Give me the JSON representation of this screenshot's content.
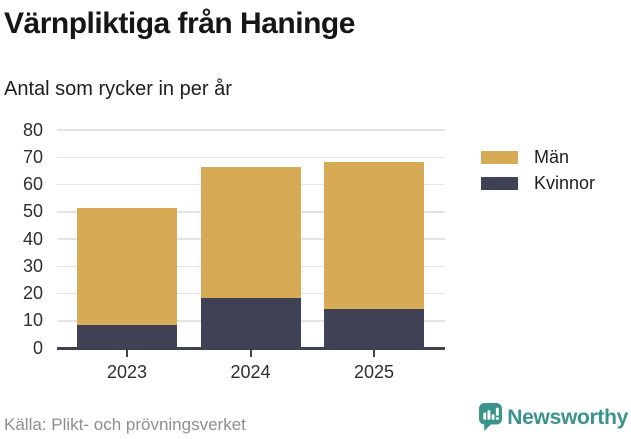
{
  "chart_data": {
    "type": "bar",
    "stacked": true,
    "title": "Värnpliktiga från Haninge",
    "subtitle": "Antal som rycker in per år",
    "categories": [
      "2023",
      "2024",
      "2025"
    ],
    "series": [
      {
        "name": "Män",
        "values": [
          43,
          48,
          54
        ],
        "color": "#d7aa56"
      },
      {
        "name": "Kvinnor",
        "values": [
          8,
          18,
          14
        ],
        "color": "#3e4254"
      }
    ],
    "stack_order_bottom_to_top": [
      "Kvinnor",
      "Män"
    ],
    "stack_totals": [
      51,
      66,
      68
    ],
    "xlabel": "",
    "ylabel": "",
    "ylim": [
      0,
      80
    ],
    "yticks": [
      0,
      10,
      20,
      30,
      40,
      50,
      60,
      70,
      80
    ],
    "grid": true,
    "legend_position": "right"
  },
  "colors": {
    "axis": "#3e4254",
    "gridline": "#e4e4e5",
    "tick_text": "#2f2f2f",
    "brand_teal": "#3a948c"
  },
  "footer": {
    "source": "Källa: Plikt- och prövningsverket",
    "brand": "Newsworthy"
  }
}
